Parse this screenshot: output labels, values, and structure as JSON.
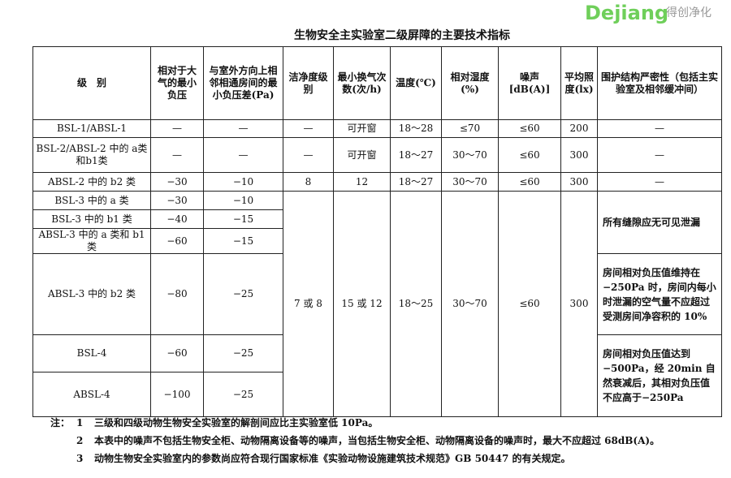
{
  "title": "生物安全主实验室二级屏障的主要技术指标",
  "headers": [
    "级　别",
    "相对于大气的最小负压",
    "与室外方向上相邻相通房间的最小负压差(Pa)",
    "洁净度级别",
    "最小换气次数(次/h)",
    "温度(℃)",
    "相对湿度(%)",
    "噪声[dB(A)]",
    "平均照度(lx)",
    "围护结构严密性（包括主实验室及相邻缓冲间）"
  ],
  "rows": [
    {
      "level": "BSL-1/ABSL-1",
      "atm": "—",
      "adj": "—",
      "clean": "—",
      "ach": "可开窗",
      "temp": "18～28",
      "rh": "≤70",
      "noise": "≤60",
      "lux": "200",
      "tight": "—"
    },
    {
      "level": "BSL-2/ABSL-2 中的 a类和b1类",
      "atm": "—",
      "adj": "—",
      "clean": "—",
      "ach": "可开窗",
      "temp": "18～27",
      "rh": "30～70",
      "noise": "≤60",
      "lux": "300",
      "tight": "—"
    },
    {
      "level": "ABSL-2 中的 b2 类",
      "atm": "−30",
      "adj": "−10",
      "clean": "8",
      "ach": "12",
      "temp": "18～27",
      "rh": "30～70",
      "noise": "≤60",
      "lux": "300",
      "tight": "—"
    },
    {
      "level": "BSL-3 中的 a 类",
      "atm": "−30",
      "adj": "−10"
    },
    {
      "level": "BSL-3 中的 b1 类",
      "atm": "−40",
      "adj": "−15"
    },
    {
      "level": "ABSL-3 中的 a 类和 b1 类",
      "atm": "−60",
      "adj": "−15"
    },
    {
      "level": "ABSL-3 中的 b2 类",
      "atm": "−80",
      "adj": "−25"
    },
    {
      "level": "BSL-4",
      "atm": "−60",
      "adj": "−25"
    },
    {
      "level": "ABSL-4",
      "atm": "−100",
      "adj": "−25"
    }
  ],
  "merged": {
    "clean": "7 或 8",
    "ach": "15 或 12",
    "temp": "18～25",
    "rh": "30～70",
    "noise": "≤60",
    "lux": "300",
    "tight_a": "所有缝隙应无可见泄漏",
    "tight_b": "房间相对负压值维持在−250Pa 时，房间内每小时泄漏的空气量不应超过受测房间净容积的 10%",
    "tight_c": "房间相对负压值达到−500Pa，经 20min 自然衰减后，其相对负压值不应高于−250Pa"
  },
  "notes": {
    "label": "注：",
    "items": [
      {
        "num": "1",
        "text": "三级和四级动物生物安全实验室的解剖间应比主实验室低 10Pa。"
      },
      {
        "num": "2",
        "text": "本表中的噪声不包括生物安全柜、动物隔离设备等的噪声，当包括生物安全柜、动物隔离设备的噪声时，最大不应超过 68dB(A)。"
      },
      {
        "num": "3",
        "text": "动物生物安全实验室内的参数尚应符合现行国家标准《实验动物设施建筑技术规范》GB 50447 的有关规定。"
      }
    ]
  },
  "watermark": {
    "brand": "Dejiang",
    "sub": "得创净化",
    "color": "#6fcf5a"
  }
}
